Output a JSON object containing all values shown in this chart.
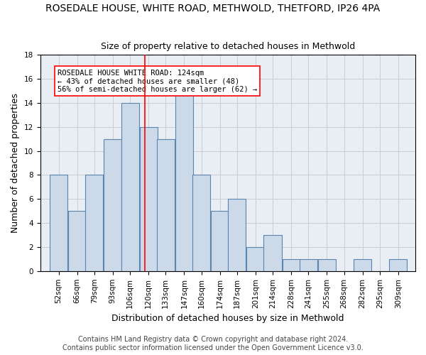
{
  "title": "ROSEDALE HOUSE, WHITE ROAD, METHWOLD, THETFORD, IP26 4PA",
  "subtitle": "Size of property relative to detached houses in Methwold",
  "xlabel": "Distribution of detached houses by size in Methwold",
  "ylabel": "Number of detached properties",
  "bins": [
    52,
    66,
    79,
    93,
    106,
    120,
    133,
    147,
    160,
    174,
    187,
    201,
    214,
    228,
    241,
    255,
    268,
    282,
    295,
    309,
    322
  ],
  "counts": [
    8,
    5,
    8,
    11,
    14,
    12,
    11,
    15,
    8,
    5,
    6,
    2,
    3,
    1,
    1,
    1,
    0,
    1,
    0,
    1
  ],
  "bar_facecolor": "#ccd9e8",
  "bar_edgecolor": "#5a85b0",
  "reference_line_x": 124,
  "reference_line_color": "red",
  "annotation_text": "ROSEDALE HOUSE WHITE ROAD: 124sqm\n← 43% of detached houses are smaller (48)\n56% of semi-detached houses are larger (62) →",
  "annotation_box_color": "white",
  "annotation_box_edgecolor": "red",
  "ylim": [
    0,
    18
  ],
  "yticks": [
    0,
    2,
    4,
    6,
    8,
    10,
    12,
    14,
    16,
    18
  ],
  "grid_color": "#cccccc",
  "background_color": "#e8eef4",
  "footer_text": "Contains HM Land Registry data © Crown copyright and database right 2024.\nContains public sector information licensed under the Open Government Licence v3.0.",
  "title_fontsize": 10,
  "subtitle_fontsize": 9,
  "xlabel_fontsize": 9,
  "ylabel_fontsize": 9,
  "tick_fontsize": 7.5,
  "annotation_fontsize": 7.5,
  "footer_fontsize": 7
}
